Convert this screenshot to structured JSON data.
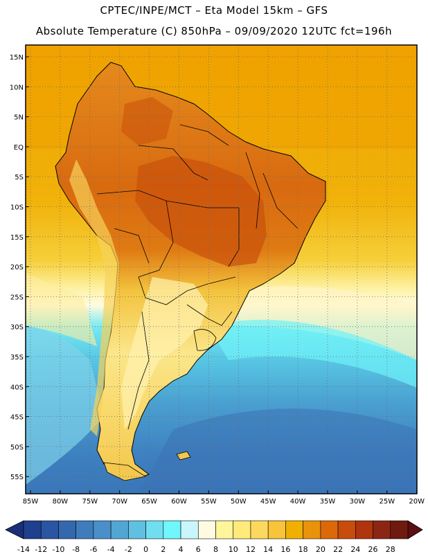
{
  "header": {
    "line1": "CPTEC/INPE/MCT –  Eta Model 15km – GFS",
    "line2": "Absolute Temperature (C) 850hPa – 09/09/2020 12UTC fct=196h"
  },
  "map": {
    "lat_labels": [
      "15N",
      "10N",
      "5N",
      "EQ",
      "5S",
      "10S",
      "15S",
      "20S",
      "25S",
      "30S",
      "35S",
      "40S",
      "45S",
      "50S",
      "55S"
    ],
    "lon_labels": [
      "85W",
      "80W",
      "75W",
      "70W",
      "65W",
      "60W",
      "55W",
      "50W",
      "45W",
      "40W",
      "35W",
      "30W",
      "25W",
      "20W"
    ],
    "colors": {
      "ocean_warm": "#f0b000",
      "land_hot": "#d56512",
      "border": "#000000"
    }
  },
  "colorbar": {
    "labels": [
      "-14",
      "-12",
      "-10",
      "-8",
      "-6",
      "-4",
      "-2",
      "0",
      "2",
      "4",
      "6",
      "8",
      "10",
      "12",
      "14",
      "16",
      "18",
      "20",
      "22",
      "24",
      "26",
      "28"
    ],
    "colors": [
      "#1f3f8f",
      "#2a55a0",
      "#3468ae",
      "#3f7cbc",
      "#4a8fca",
      "#52a6d4",
      "#5fc0e2",
      "#6fdfef",
      "#6ff7fb",
      "#c8f6fc",
      "#fffbe2",
      "#fff59a",
      "#ffea7a",
      "#fcd95e",
      "#f7c43a",
      "#f0b000",
      "#e8930a",
      "#dc6808",
      "#c84c0c",
      "#b0340e",
      "#8c2614",
      "#6e1a0e"
    ],
    "left_arrow_color": "#1a2f78",
    "right_arrow_color": "#5a0f12"
  }
}
